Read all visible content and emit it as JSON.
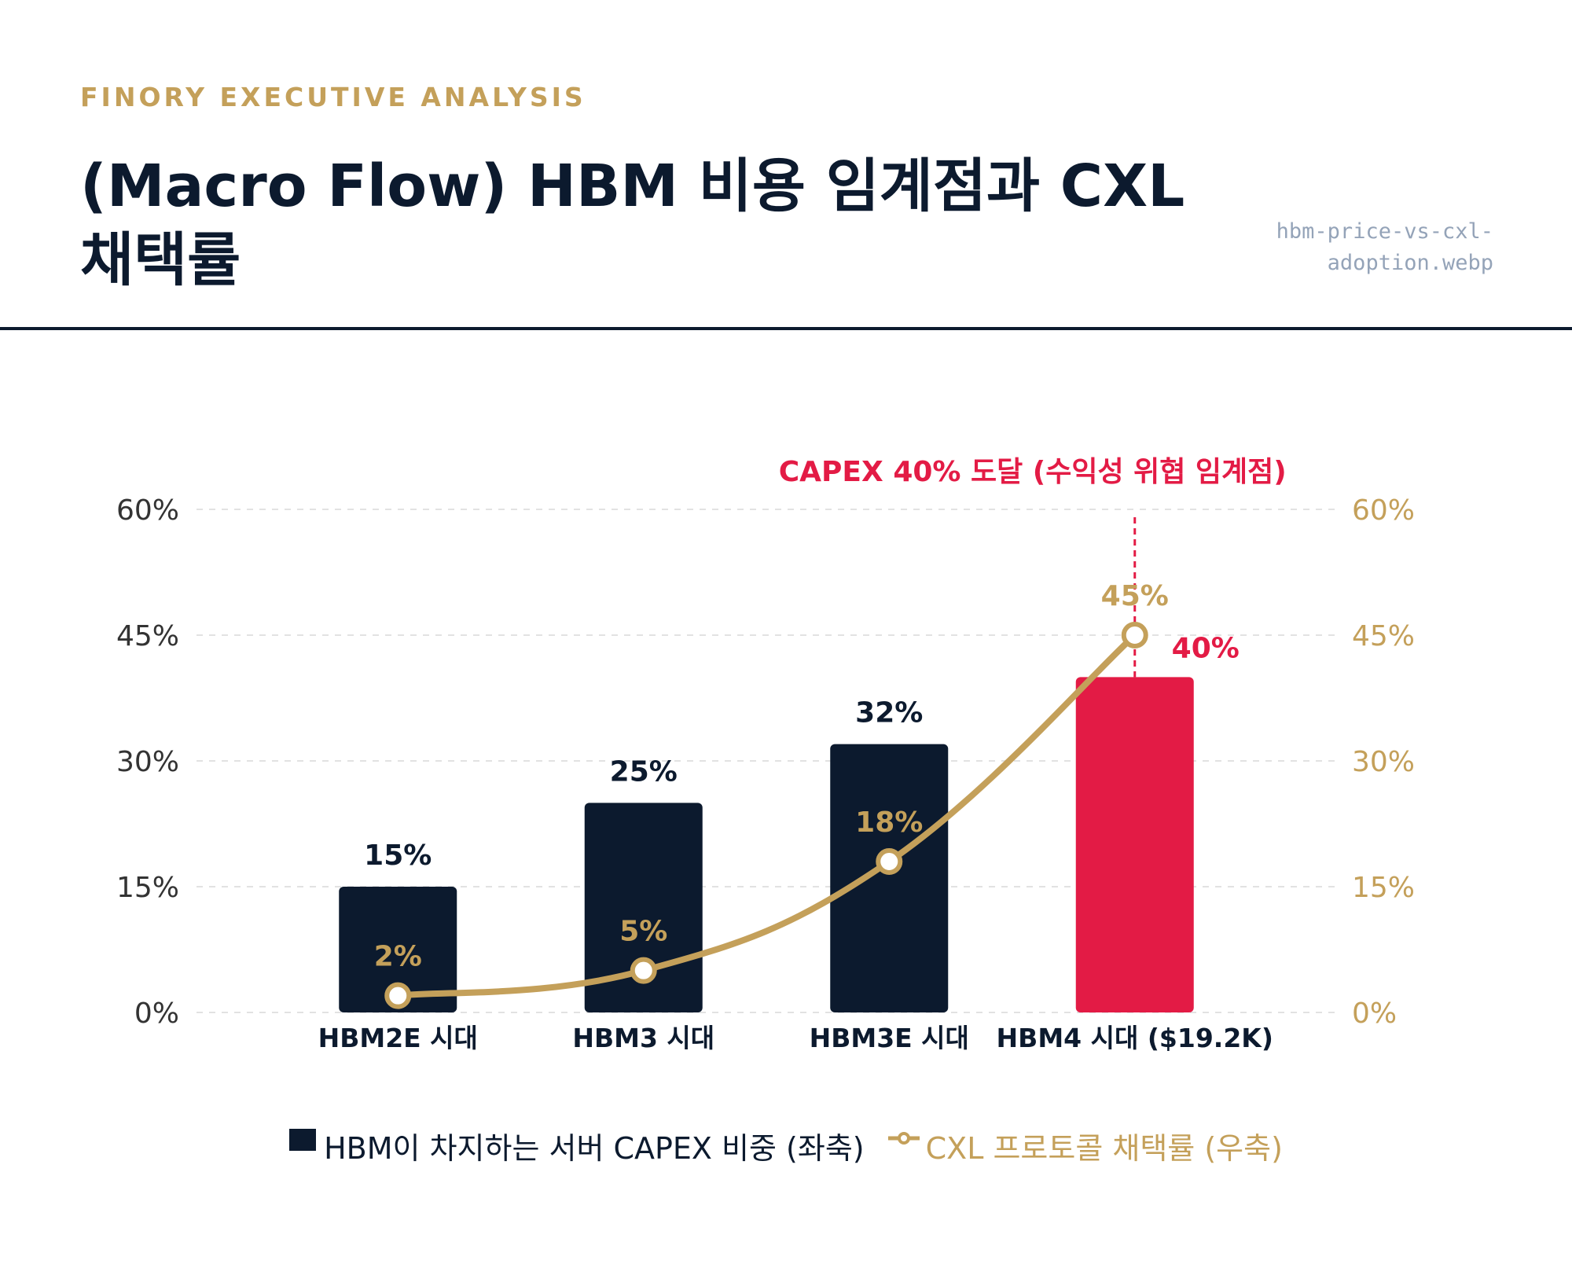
{
  "header": {
    "kicker": "FINORY EXECUTIVE ANALYSIS",
    "title": "(Macro Flow) HBM 비용 임계점과 CXL 채택률",
    "filename": "hbm-price-vs-cxl-adoption.webp"
  },
  "chart_data": {
    "type": "bar",
    "categories": [
      "HBM2E 시대",
      "HBM3 시대",
      "HBM3E 시대",
      "HBM4 시대 ($19.2K)"
    ],
    "series": [
      {
        "name": "HBM이 차지하는 서버 CAPEX 비중 (좌축)",
        "type": "bar",
        "axis": "left",
        "values": [
          15,
          25,
          32,
          40
        ],
        "labels": [
          "15%",
          "25%",
          "32%",
          "40%"
        ],
        "color": "#0c1a2e",
        "highlight_index": 3,
        "highlight_color": "#e31b45"
      },
      {
        "name": "CXL 프로토콜 채택률 (우축)",
        "type": "line",
        "axis": "right",
        "values": [
          2,
          5,
          18,
          45
        ],
        "labels": [
          "2%",
          "5%",
          "18%",
          "45%"
        ],
        "color": "#c4a05a"
      }
    ],
    "y_left": {
      "range": [
        0,
        60
      ],
      "ticks": [
        "0%",
        "15%",
        "30%",
        "45%",
        "60%"
      ],
      "tick_values": [
        0,
        15,
        30,
        45,
        60
      ]
    },
    "y_right": {
      "range": [
        0,
        60
      ],
      "ticks": [
        "0%",
        "15%",
        "30%",
        "45%",
        "60%"
      ],
      "tick_values": [
        0,
        15,
        30,
        45,
        60
      ]
    },
    "grid": true,
    "legend_position": "bottom",
    "annotation": {
      "text": "CAPEX 40% 도달 (수익성 위협 임계점)",
      "category_index": 3,
      "color": "#e31b45"
    }
  },
  "colors": {
    "navy": "#0c1a2e",
    "gold": "#c4a05a",
    "red": "#e31b45",
    "grid": "#e2e2e2",
    "muted": "#94a3b8"
  }
}
